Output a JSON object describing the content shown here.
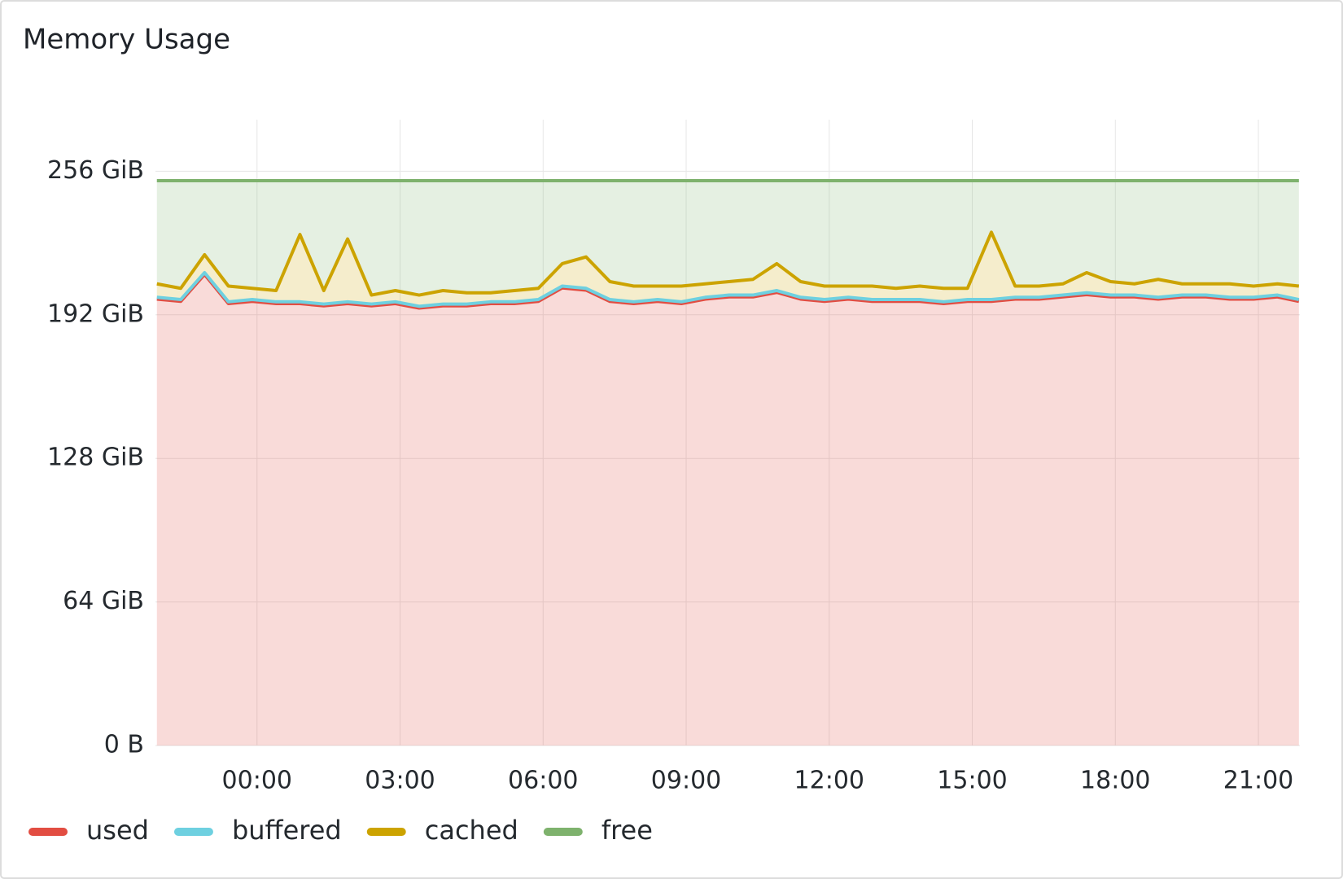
{
  "chart_data": {
    "type": "area",
    "title": "Memory Usage",
    "stacked": true,
    "grid": true,
    "legend": "bottom-left",
    "x": [
      -2.1,
      -1.6,
      -1.1,
      -0.6,
      -0.1,
      0.4,
      0.9,
      1.4,
      1.9,
      2.4,
      2.9,
      3.4,
      3.9,
      4.4,
      4.9,
      5.4,
      5.9,
      6.4,
      6.9,
      7.4,
      7.9,
      8.4,
      8.9,
      9.4,
      9.9,
      10.4,
      10.9,
      11.4,
      11.9,
      12.4,
      12.9,
      13.4,
      13.9,
      14.4,
      14.9,
      15.4,
      15.9,
      16.4,
      16.9,
      17.4,
      17.9,
      18.4,
      18.9,
      19.4,
      19.9,
      20.4,
      20.9,
      21.4,
      21.85
    ],
    "xlim": [
      -2.13,
      21.87
    ],
    "xticks": [
      {
        "value": 0,
        "label": "00:00"
      },
      {
        "value": 3,
        "label": "03:00"
      },
      {
        "value": 6,
        "label": "06:00"
      },
      {
        "value": 9,
        "label": "09:00"
      },
      {
        "value": 12,
        "label": "12:00"
      },
      {
        "value": 15,
        "label": "15:00"
      },
      {
        "value": 18,
        "label": "18:00"
      },
      {
        "value": 21,
        "label": "21:00"
      }
    ],
    "ylim": [
      0,
      279
    ],
    "yticks": [
      {
        "value": 0,
        "label": "0 B"
      },
      {
        "value": 64,
        "label": "64 GiB"
      },
      {
        "value": 128,
        "label": "128 GiB"
      },
      {
        "value": 192,
        "label": "192 GiB"
      },
      {
        "value": 256,
        "label": "256 GiB"
      }
    ],
    "series": [
      {
        "name": "used",
        "color": "#e24d42",
        "values": [
          199,
          198,
          210,
          197,
          198,
          197,
          197,
          196,
          197,
          196,
          197,
          195,
          196,
          196,
          197,
          197,
          198,
          204,
          203,
          198,
          197,
          198,
          197,
          199,
          200,
          200,
          202,
          199,
          198,
          199,
          198,
          198,
          198,
          197,
          198,
          198,
          199,
          199,
          200,
          201,
          200,
          200,
          199,
          200,
          200,
          199,
          199,
          200,
          198
        ]
      },
      {
        "name": "buffered",
        "color": "#6ed0e0",
        "values": [
          0.8,
          0.8,
          0.8,
          0.8,
          0.8,
          0.8,
          0.8,
          0.8,
          0.8,
          0.8,
          0.8,
          0.8,
          0.8,
          0.8,
          0.8,
          0.8,
          0.8,
          0.8,
          0.8,
          0.8,
          0.8,
          0.8,
          0.8,
          0.8,
          0.8,
          0.8,
          0.8,
          0.8,
          0.8,
          0.8,
          0.8,
          0.8,
          0.8,
          0.8,
          0.8,
          0.8,
          0.8,
          0.8,
          0.8,
          0.8,
          0.8,
          0.8,
          0.8,
          0.8,
          0.8,
          0.8,
          0.8,
          0.8,
          0.8
        ]
      },
      {
        "name": "cached",
        "color": "#cca300",
        "values": [
          6,
          5,
          8,
          7,
          5,
          5,
          30,
          6,
          28,
          4,
          5,
          5,
          6,
          5,
          4,
          5,
          5,
          10,
          14,
          8,
          7,
          6,
          7,
          6,
          6,
          7,
          12,
          7,
          6,
          5,
          6,
          5,
          6,
          6,
          5,
          30,
          5,
          5,
          5,
          9,
          6,
          5,
          8,
          5,
          5,
          6,
          5,
          5,
          6
        ]
      },
      {
        "name": "free",
        "color": "#7eb26d",
        "values": [
          46,
          48,
          33,
          47,
          48,
          49,
          24,
          49,
          26,
          51,
          49,
          51,
          49,
          50,
          50,
          49,
          48,
          37,
          34,
          45,
          47,
          47,
          47,
          46,
          45,
          44,
          37,
          45,
          47,
          47,
          47,
          48,
          47,
          48,
          48,
          23,
          47,
          47,
          46,
          41,
          45,
          46,
          44,
          46,
          46,
          46,
          47,
          46,
          47
        ]
      }
    ]
  }
}
